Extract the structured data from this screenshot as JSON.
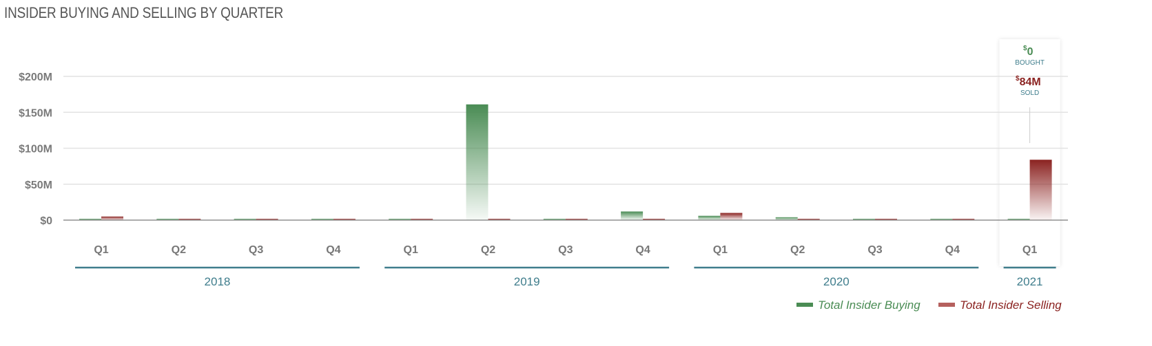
{
  "page": {
    "title": "INSIDER BUYING AND SELLING BY QUARTER"
  },
  "colors": {
    "buying": "#4a8c54",
    "selling": "#8b2321",
    "axis_year": "#3f7d8c",
    "grid": "#e2e2e2"
  },
  "tooltip": {
    "bought_sup": "$",
    "bought_value": "0",
    "bought_label": "BOUGHT",
    "sold_sup": "$",
    "sold_value": "84M",
    "sold_label": "SOLD"
  },
  "chart_data": {
    "type": "bar",
    "title": "INSIDER BUYING AND SELLING BY QUARTER",
    "categories": [
      "Q1",
      "Q2",
      "Q3",
      "Q4",
      "Q1",
      "Q2",
      "Q3",
      "Q4",
      "Q1",
      "Q2",
      "Q3",
      "Q4",
      "Q1"
    ],
    "groups": [
      {
        "label": "2018",
        "start": 0,
        "end": 3
      },
      {
        "label": "2019",
        "start": 4,
        "end": 7
      },
      {
        "label": "2020",
        "start": 8,
        "end": 11
      },
      {
        "label": "2021",
        "start": 12,
        "end": 12
      }
    ],
    "series": [
      {
        "name": "Total Insider Buying",
        "color": "#4a8c54",
        "values": [
          0.3,
          0.3,
          0.3,
          0.2,
          0.2,
          161,
          0.3,
          12,
          6,
          4,
          0.2,
          0.2,
          0
        ]
      },
      {
        "name": "Total Insider Selling",
        "color": "#8b2321",
        "values": [
          5,
          0.8,
          1.5,
          0.5,
          0.6,
          0.8,
          0.6,
          0.5,
          10,
          0.5,
          1.5,
          0.4,
          84
        ]
      }
    ],
    "yticks": [
      "$0",
      "$50M",
      "$100M",
      "$150M",
      "$200M"
    ],
    "ytick_values": [
      0,
      50,
      100,
      150,
      200
    ],
    "ylim": [
      0,
      200
    ],
    "grid": true,
    "legend": "bottom-right",
    "highlighted_index": 12,
    "xlabel": "",
    "ylabel": ""
  }
}
